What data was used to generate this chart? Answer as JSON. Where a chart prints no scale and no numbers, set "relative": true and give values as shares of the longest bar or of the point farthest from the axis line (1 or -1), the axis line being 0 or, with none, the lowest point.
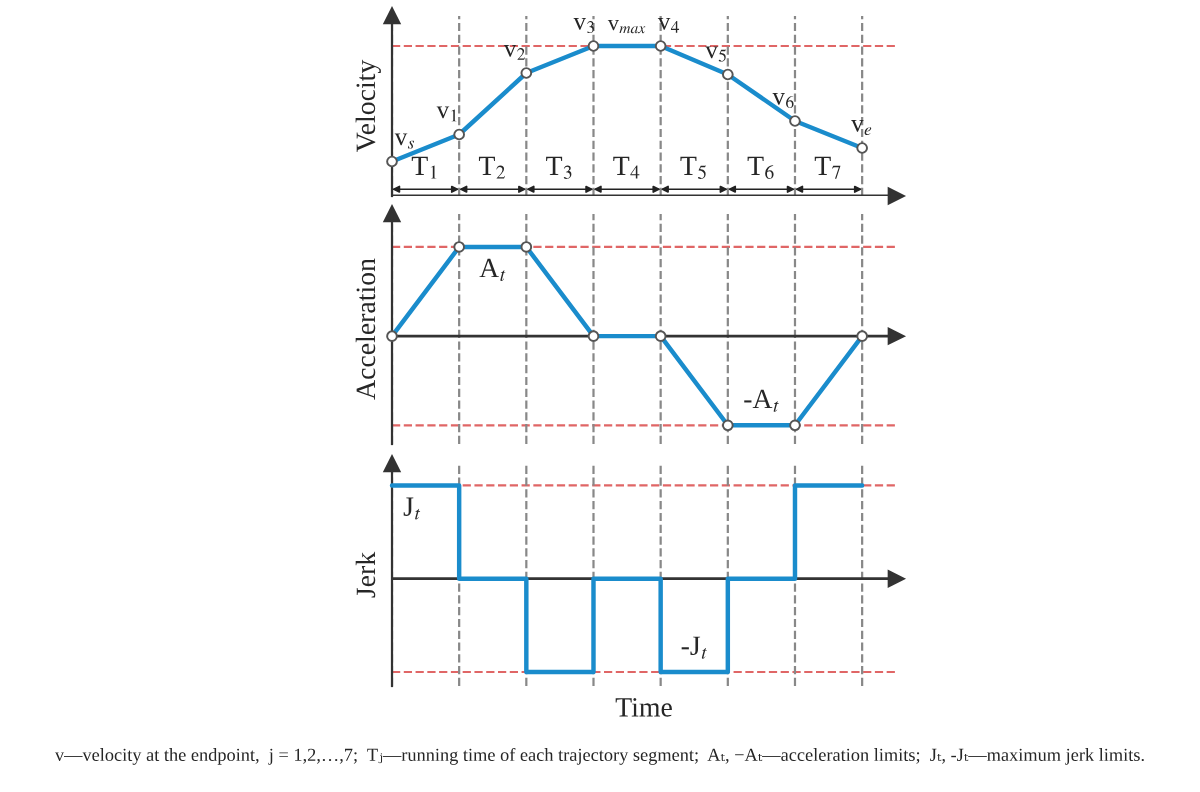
{
  "chart_data": [
    {
      "type": "line",
      "relative": true,
      "ylabel": "Velocity",
      "marker": "circle",
      "line_style": "solid",
      "grid": "x",
      "tick_labels": false,
      "categories": [
        null,
        null,
        null,
        null,
        null,
        null,
        null,
        null
      ],
      "series": [
        {
          "color": "#1a8ccc",
          "values": [
            0.23,
            0.41,
            0.82,
            1,
            1,
            0.81,
            0.5,
            0.32
          ]
        }
      ],
      "ref_lines": [
        {
          "axis": "y",
          "value": 1,
          "color": "#e06666",
          "line_style": "dashed"
        }
      ],
      "annotations": [
        "v$_{s}$",
        "v$_{1}$",
        "v$_{2}$",
        "v$_{3}$",
        "v$_{max}$",
        "v$_{4}$",
        "v$_{5}$",
        "v$_{6}$",
        "v$_{e}$",
        "T$_{1}$",
        "T$_{2}$",
        "T$_{3}$",
        "T$_{4}$",
        "T$_{5}$",
        "T$_{6}$",
        "T$_{7}$"
      ]
    },
    {
      "type": "line",
      "relative": true,
      "ylabel": "Acceleration",
      "marker": "circle",
      "line_style": "solid",
      "grid": "x",
      "tick_labels": false,
      "categories": [
        null,
        null,
        null,
        null,
        null,
        null,
        null,
        null
      ],
      "series": [
        {
          "color": "#1a8ccc",
          "values": [
            0,
            1,
            1,
            0,
            0,
            -1,
            -1,
            0
          ]
        }
      ],
      "ref_lines": [
        {
          "axis": "y",
          "value": 1,
          "color": "#e06666",
          "line_style": "dashed"
        },
        {
          "axis": "y",
          "value": -1,
          "color": "#e06666",
          "line_style": "dashed"
        }
      ],
      "annotations": [
        "A$_{t}$",
        "-A$_{t}$"
      ]
    },
    {
      "type": "step",
      "relative": true,
      "ylabel": "Jerk",
      "xlabel": "Time",
      "line_style": "solid",
      "grid": "x",
      "tick_labels": false,
      "categories": [
        null,
        null,
        null,
        null,
        null,
        null,
        null,
        null
      ],
      "series": [
        {
          "color": "#1a8ccc",
          "values": [
            1,
            0,
            -1,
            0,
            -1,
            0,
            1,
            1
          ]
        }
      ],
      "ref_lines": [
        {
          "axis": "y",
          "value": 1,
          "color": "#e06666",
          "line_style": "dashed"
        },
        {
          "axis": "y",
          "value": -1,
          "color": "#e06666",
          "line_style": "dashed"
        }
      ],
      "annotations": [
        "J$_{t}$",
        "-J$_{t}$",
        "v—velocity at the endpoint,  j = 1,2,…,7;  Tⱼ—running time of each trajectory segment;  Aₜ, −Aₜ—acceleration limits;  Jₜ, -Jₜ—maximum jerk limits."
      ]
    }
  ]
}
